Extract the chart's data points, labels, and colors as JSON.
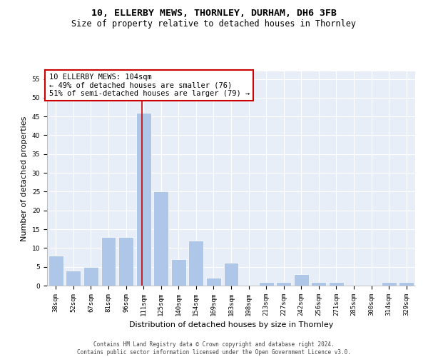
{
  "title": "10, ELLERBY MEWS, THORNLEY, DURHAM, DH6 3FB",
  "subtitle": "Size of property relative to detached houses in Thornley",
  "xlabel": "Distribution of detached houses by size in Thornley",
  "ylabel": "Number of detached properties",
  "categories": [
    "38sqm",
    "52sqm",
    "67sqm",
    "81sqm",
    "96sqm",
    "111sqm",
    "125sqm",
    "140sqm",
    "154sqm",
    "169sqm",
    "183sqm",
    "198sqm",
    "213sqm",
    "227sqm",
    "242sqm",
    "256sqm",
    "271sqm",
    "285sqm",
    "300sqm",
    "314sqm",
    "329sqm"
  ],
  "values": [
    8,
    4,
    5,
    13,
    13,
    46,
    25,
    7,
    12,
    2,
    6,
    0,
    1,
    1,
    3,
    1,
    1,
    0,
    0,
    1,
    1
  ],
  "bar_color": "#aec6e8",
  "bar_edge_color": "#ffffff",
  "vline_color": "#cc0000",
  "annotation_box_color": "#cc0000",
  "annotation_text_line1": "10 ELLERBY MEWS: 104sqm",
  "annotation_text_line2": "← 49% of detached houses are smaller (76)",
  "annotation_text_line3": "51% of semi-detached houses are larger (79) →",
  "ylim": [
    0,
    57
  ],
  "yticks": [
    0,
    5,
    10,
    15,
    20,
    25,
    30,
    35,
    40,
    45,
    50,
    55
  ],
  "background_color": "#e8eef8",
  "grid_color": "#ffffff",
  "footer_line1": "Contains HM Land Registry data © Crown copyright and database right 2024.",
  "footer_line2": "Contains public sector information licensed under the Open Government Licence v3.0.",
  "title_fontsize": 9.5,
  "subtitle_fontsize": 8.5,
  "tick_fontsize": 6.5,
  "ylabel_fontsize": 8,
  "xlabel_fontsize": 8,
  "annotation_fontsize": 7.5,
  "footer_fontsize": 5.5
}
